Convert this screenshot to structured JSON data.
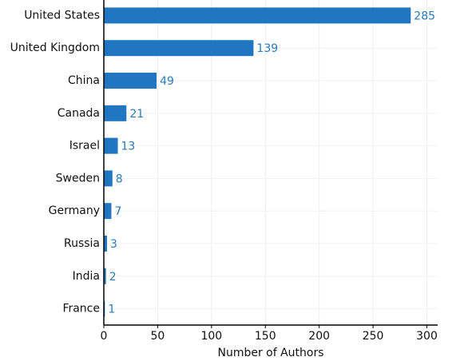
{
  "chart_data": {
    "type": "bar",
    "orientation": "horizontal",
    "categories": [
      "United States",
      "United Kingdom",
      "China",
      "Canada",
      "Israel",
      "Sweden",
      "Germany",
      "Russia",
      "India",
      "France"
    ],
    "values": [
      285,
      139,
      49,
      21,
      13,
      8,
      7,
      3,
      2,
      1
    ],
    "color": "#2176c1",
    "xlabel": "Number of Authors",
    "xlim": [
      0,
      310
    ],
    "xticks": [
      0,
      50,
      100,
      150,
      200,
      250,
      300
    ],
    "grid": true
  }
}
